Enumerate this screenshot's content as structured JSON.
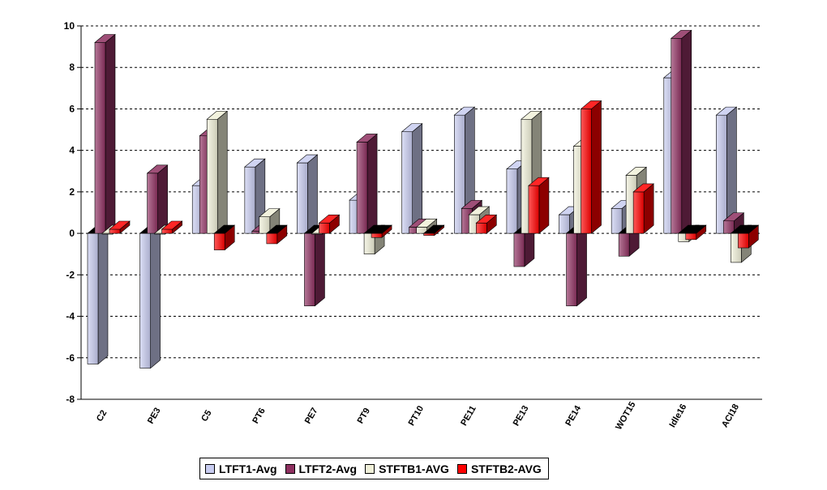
{
  "chart_data": {
    "type": "bar",
    "style": "3d-clustered-column",
    "categories": [
      "C2",
      "PE3",
      "C5",
      "PT6",
      "PE7",
      "PT9",
      "PT10",
      "PE11",
      "PE13",
      "PE14",
      "WOT15",
      "Idle16",
      "ACI18"
    ],
    "series": [
      {
        "name": "LTFT1-Avg",
        "color": "#c8ccf0",
        "values": [
          -6.3,
          -6.5,
          2.3,
          3.2,
          3.4,
          1.6,
          4.9,
          5.7,
          3.1,
          0.9,
          1.2,
          7.5,
          5.7
        ]
      },
      {
        "name": "LTFT2-Avg",
        "color": "#8e3060",
        "values": [
          9.2,
          2.9,
          4.7,
          0.1,
          -3.5,
          4.4,
          0.3,
          1.2,
          -1.6,
          -3.5,
          -1.1,
          9.4,
          0.6
        ]
      },
      {
        "name": "STFTB1-AVG",
        "color": "#f0f0d8",
        "values": [
          0.0,
          0.0,
          5.5,
          0.8,
          0.0,
          -1.0,
          0.3,
          0.9,
          5.5,
          4.2,
          2.8,
          -0.4,
          -1.4
        ]
      },
      {
        "name": "STFTB2-AVG",
        "color": "#ff0000",
        "values": [
          0.2,
          0.2,
          -0.8,
          -0.5,
          0.5,
          -0.2,
          -0.1,
          0.5,
          2.3,
          6.0,
          2.0,
          -0.3,
          -0.7
        ]
      }
    ],
    "y_ticks": [
      "10",
      "8",
      "6",
      "4",
      "2",
      "0",
      "-2",
      "-4",
      "-6",
      "-8"
    ],
    "ylim": [
      -8,
      10
    ],
    "grid": "horizontal dashed",
    "legend_position": "bottom"
  },
  "legend": {
    "items": [
      {
        "label": "LTFT1-Avg",
        "color": "#c8ccf0"
      },
      {
        "label": "LTFT2-Avg",
        "color": "#8e3060"
      },
      {
        "label": "STFTB1-AVG",
        "color": "#f0f0d8"
      },
      {
        "label": "STFTB2-AVG",
        "color": "#ff0000"
      }
    ]
  }
}
